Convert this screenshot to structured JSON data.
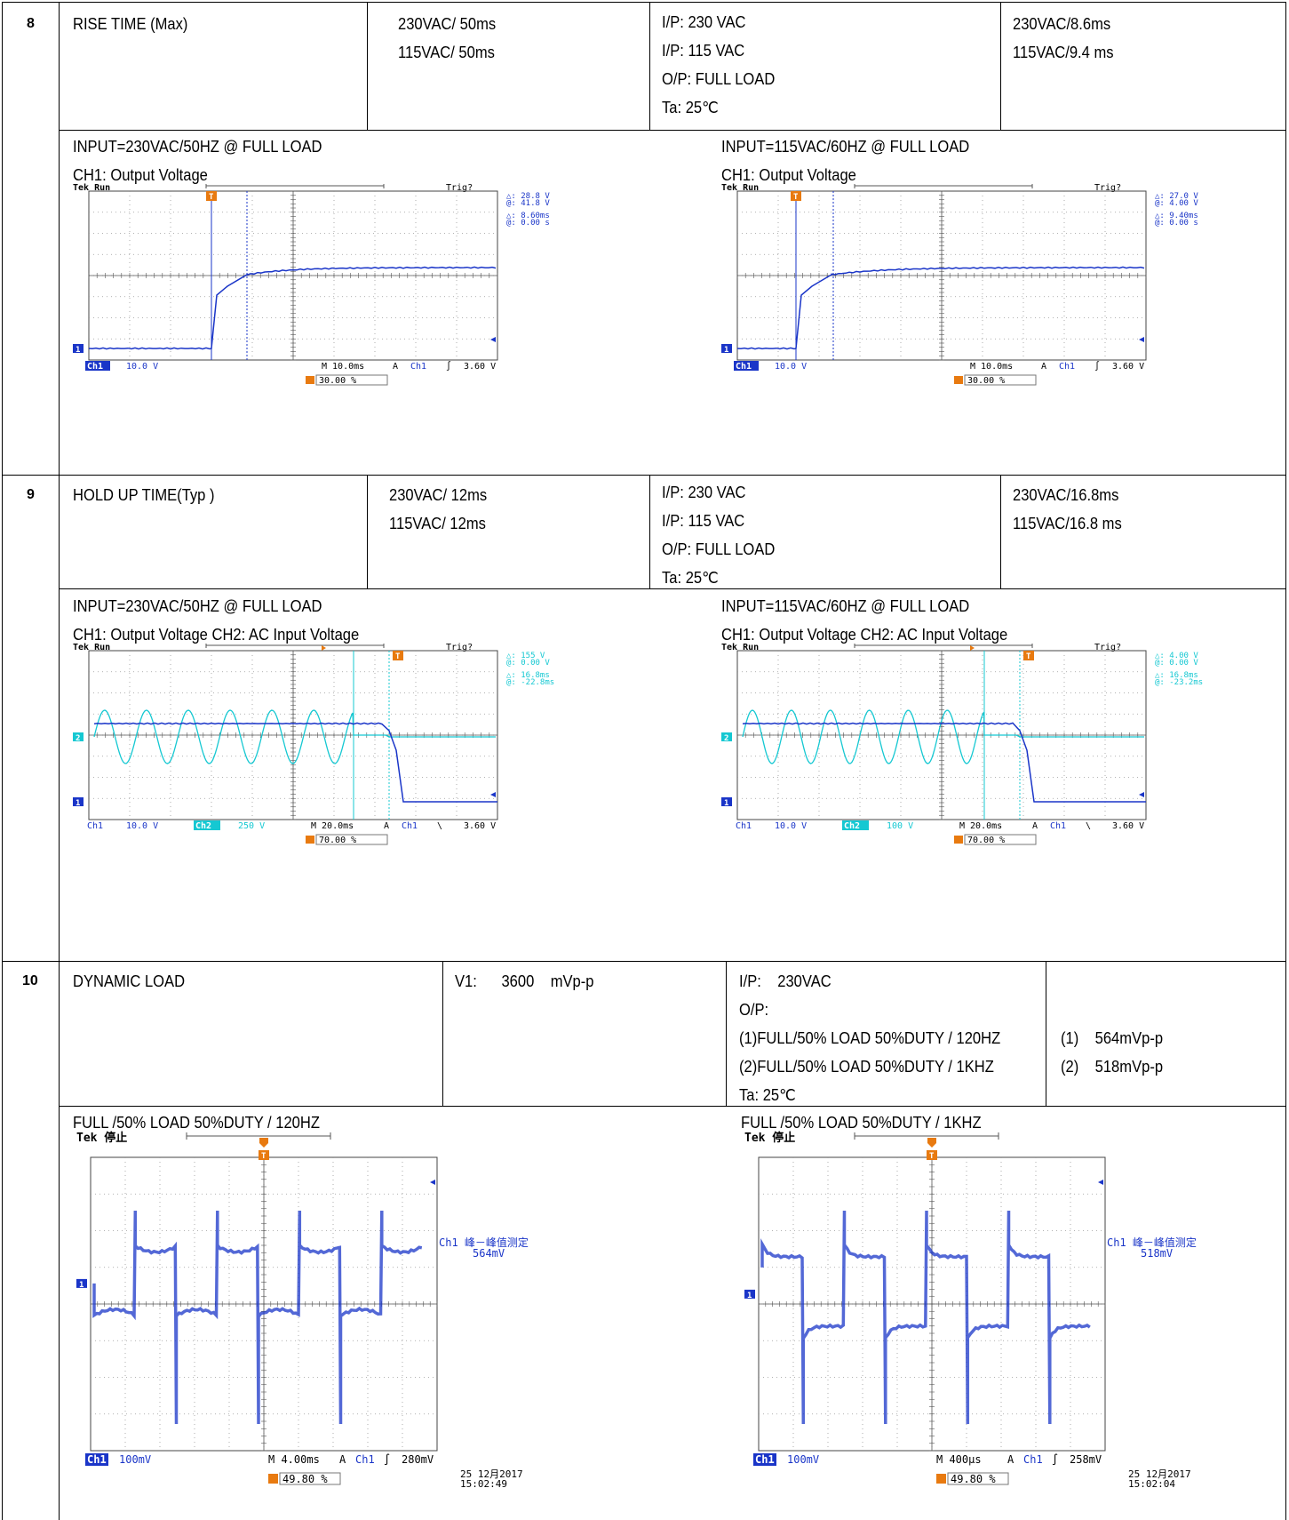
{
  "sections": [
    {
      "num": "8",
      "item": "RISE TIME (Max)",
      "spec": [
        "230VAC/ 50ms",
        "115VAC/ 50ms"
      ],
      "cond": [
        "I/P:   230 VAC",
        "I/P:   115 VAC",
        "O/P:  FULL LOAD",
        "Ta:  25℃"
      ],
      "result": [
        "230VAC/8.6ms",
        "115VAC/9.4 ms"
      ],
      "captions": [
        [
          "INPUT=230VAC/50HZ @ FULL LOAD",
          "CH1:  Output Voltage"
        ],
        [
          "INPUT=115VAC/60HZ @ FULL LOAD",
          "CH1:  Output Voltage"
        ]
      ]
    },
    {
      "num": "9",
      "item": "HOLD UP TIME(Typ )",
      "spec": [
        "230VAC/ 12ms",
        "115VAC/ 12ms"
      ],
      "cond": [
        "I/P:   230 VAC",
        "I/P:   115 VAC",
        "O/P:  FULL LOAD",
        "Ta:  25℃"
      ],
      "result": [
        "230VAC/16.8ms",
        "115VAC/16.8 ms"
      ],
      "captions": [
        [
          "INPUT=230VAC/50HZ @ FULL LOAD",
          "CH1:  Output Voltage    CH2:  AC Input Voltage"
        ],
        [
          "INPUT=115VAC/60HZ @ FULL LOAD",
          "CH1:  Output Voltage    CH2:  AC Input Voltage"
        ]
      ]
    },
    {
      "num": "10",
      "item": "DYNAMIC LOAD",
      "spec": [
        "V1:      3600    mVp-p"
      ],
      "cond": [
        "I/P:    230VAC",
        "O/P:",
        "(1)FULL/50% LOAD 50%DUTY / 120HZ",
        "(2)FULL/50% LOAD 50%DUTY / 1KHZ",
        "Ta:  25℃"
      ],
      "result": [
        "(1)    564mVp-p",
        "(2)    518mVp-p"
      ],
      "captions": [
        [
          "FULL /50% LOAD 50%DUTY / 120HZ"
        ],
        [
          "FULL /50% LOAD 50%DUTY / 1KHZ"
        ]
      ]
    }
  ],
  "scopes": [
    {
      "header": "Tek Run",
      "trig": "Trig?",
      "meas": [
        "△:   28.8 V",
        "@:   41.8 V",
        "△:   8.60ms",
        "@:   0.00 s"
      ],
      "foot": [
        "Ch1",
        "10.0 V",
        "M 10.0ms",
        "A",
        "Ch1",
        "3.60 V"
      ],
      "trigpos": "30.00 %"
    },
    {
      "header": "Tek Run",
      "trig": "Trig?",
      "meas": [
        "△:   27.0 V",
        "@:   4.00 V",
        "△:   9.40ms",
        "@:   0.00 s"
      ],
      "foot": [
        "Ch1",
        "10.0 V",
        "M 10.0ms",
        "A",
        "Ch1",
        "3.60 V"
      ],
      "trigpos": "30.00 %"
    },
    {
      "header": "Tek Run",
      "trig": "Trig?",
      "meas": [
        "△:   155 V",
        "@:   0.00 V",
        "△:   16.8ms",
        "@:  -22.8ms"
      ],
      "foot": [
        "Ch1",
        "10.0 V",
        "Ch2",
        "250 V",
        "M 20.0ms",
        "A",
        "Ch1",
        "3.60 V"
      ],
      "trigpos": "70.00 %"
    },
    {
      "header": "Tek Run",
      "trig": "Trig?",
      "meas": [
        "△:   4.00 V",
        "@:   0.00 V",
        "△:   16.8ms",
        "@:  -23.2ms"
      ],
      "foot": [
        "Ch1",
        "10.0 V",
        "Ch2",
        "100 V",
        "M 20.0ms",
        "A",
        "Ch1",
        "3.60 V"
      ],
      "trigpos": "70.00 %"
    },
    {
      "header": "Tek 停止",
      "meas": [
        "Ch1 峰－峰值测定",
        "564mV"
      ],
      "foot": [
        "Ch1",
        "100mV",
        "M 4.00ms",
        "A",
        "Ch1",
        "280mV"
      ],
      "trigpos": "49.80 %",
      "date": "25 12月2017",
      "time": "15:02:49"
    },
    {
      "header": "Tek 停止",
      "meas": [
        "Ch1 峰－峰值测定",
        "518mV"
      ],
      "foot": [
        "Ch1",
        "100mV",
        "M 400µs",
        "A",
        "Ch1",
        "258mV"
      ],
      "trigpos": "49.80 %",
      "date": "25 12月2017",
      "time": "15:02:04"
    }
  ],
  "colors": {
    "ch1": "#1a35c8",
    "ch2": "#15c8d2",
    "trigger": "#e87a10"
  }
}
